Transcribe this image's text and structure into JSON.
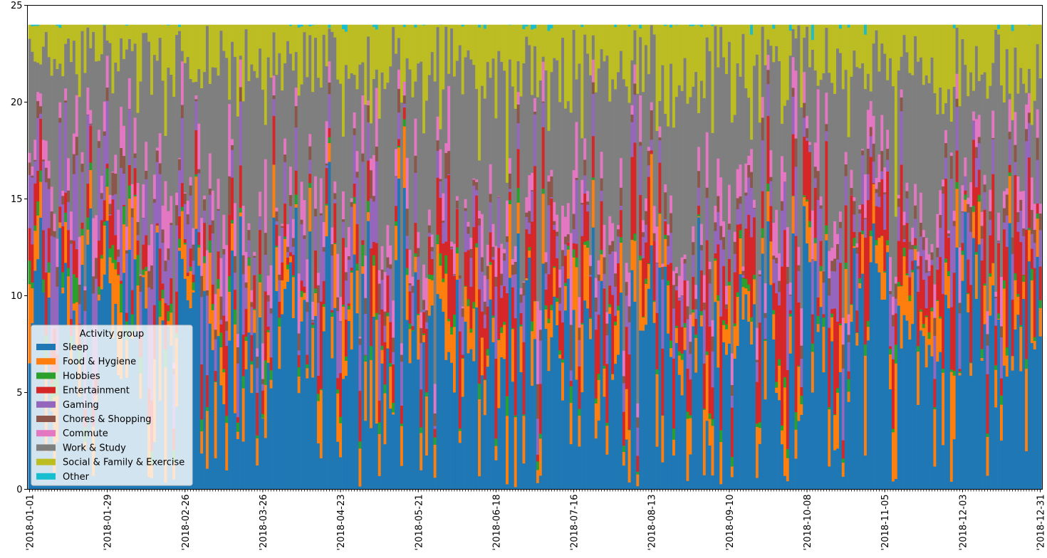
{
  "chart_data": {
    "type": "bar",
    "stacked": true,
    "title": "",
    "xlabel": "",
    "ylabel": "",
    "ylim": [
      0,
      25
    ],
    "yticks": [
      0,
      5,
      10,
      15,
      20,
      25
    ],
    "grid": false,
    "legend_position": "lower left",
    "legend_title": "Activity group",
    "x_start": "2018-01-01",
    "x_end": "2018-12-31",
    "num_days": 365,
    "xtick_labels": [
      "'2018-01-01",
      "'2018-01-29",
      "'2018-02-26",
      "'2018-03-26",
      "'2018-04-23",
      "'2018-05-21",
      "'2018-06-18",
      "'2018-07-16",
      "'2018-08-13",
      "'2018-09-10",
      "'2018-10-08",
      "'2018-11-05",
      "'2018-12-03",
      "'2018-12-31"
    ],
    "xtick_day_index": [
      0,
      28,
      56,
      84,
      112,
      140,
      168,
      196,
      224,
      252,
      280,
      308,
      336,
      364
    ],
    "resolution_note": "weekly averages (hours per day), week 1 starting 2018-01-01",
    "series": [
      {
        "name": "Sleep",
        "color": "#1f77b4",
        "values": [
          9.6,
          9.2,
          9.0,
          8.7,
          8.9,
          8.4,
          8.1,
          7.8,
          7.9,
          7.6,
          7.8,
          7.5,
          7.4,
          7.2,
          7.6,
          7.9,
          7.8,
          7.7,
          7.6,
          7.9,
          7.8,
          7.4,
          7.3,
          7.2,
          6.9,
          7.4,
          7.0,
          7.6,
          6.8,
          6.9,
          6.7,
          6.6,
          6.6,
          7.3,
          6.9,
          7.6,
          7.8,
          7.8,
          7.7,
          7.7,
          7.9,
          8.1,
          7.6,
          7.8,
          8.1,
          8.0,
          7.7,
          7.6,
          7.8,
          7.6,
          7.7,
          8.0,
          8.6
        ]
      },
      {
        "name": "Food & Hygiene",
        "color": "#ff7f0e",
        "values": [
          1.8,
          1.9,
          1.6,
          1.8,
          1.5,
          1.9,
          1.8,
          1.7,
          1.6,
          1.8,
          1.8,
          1.8,
          1.8,
          1.7,
          1.7,
          1.6,
          1.8,
          1.7,
          1.7,
          1.8,
          1.7,
          1.6,
          1.6,
          1.7,
          1.9,
          1.8,
          1.6,
          1.5,
          1.8,
          1.8,
          1.8,
          1.7,
          1.8,
          1.6,
          1.8,
          1.8,
          1.7,
          1.7,
          1.6,
          1.7,
          1.6,
          1.7,
          1.6,
          1.9,
          1.6,
          1.8,
          1.6,
          1.7,
          1.7,
          1.7,
          1.6,
          1.6,
          1.7
        ]
      },
      {
        "name": "Hobbies",
        "color": "#2ca02c",
        "values": [
          0.6,
          0.8,
          0.7,
          0.5,
          0.6,
          0.6,
          0.5,
          0.4,
          0.5,
          0.4,
          0.3,
          0.3,
          0.3,
          0.2,
          0.2,
          0.2,
          0.2,
          0.3,
          0.3,
          0.2,
          0.2,
          0.3,
          0.3,
          0.3,
          0.3,
          0.3,
          0.2,
          0.2,
          0.2,
          0.2,
          0.2,
          0.2,
          0.2,
          0.2,
          0.2,
          0.2,
          0.3,
          0.2,
          0.2,
          0.2,
          0.3,
          0.2,
          0.2,
          0.2,
          0.2,
          0.2,
          0.2,
          0.2,
          0.2,
          0.2,
          0.2,
          0.2,
          0.3
        ]
      },
      {
        "name": "Entertainment",
        "color": "#d62728",
        "values": [
          1.9,
          1.4,
          1.2,
          1.4,
          1.2,
          1.0,
          1.2,
          1.3,
          1.2,
          1.1,
          1.4,
          1.4,
          1.3,
          1.6,
          1.2,
          1.1,
          1.2,
          1.3,
          1.5,
          1.4,
          1.5,
          2.2,
          2.0,
          2.3,
          2.4,
          2.3,
          2.4,
          1.8,
          2.3,
          2.3,
          2.3,
          2.3,
          2.3,
          1.9,
          2.1,
          1.9,
          2.3,
          2.5,
          2.6,
          2.4,
          2.5,
          2.5,
          2.6,
          2.4,
          2.3,
          2.2,
          2.3,
          2.5,
          2.5,
          2.6,
          2.5,
          2.5,
          2.4
        ]
      },
      {
        "name": "Gaming",
        "color": "#9467bd",
        "values": [
          2.6,
          3.0,
          2.7,
          2.6,
          2.9,
          2.7,
          2.6,
          2.4,
          2.3,
          2.2,
          1.8,
          1.6,
          1.6,
          1.6,
          1.7,
          1.8,
          1.7,
          1.6,
          1.5,
          1.4,
          1.2,
          1.4,
          1.3,
          1.3,
          1.3,
          1.2,
          1.3,
          1.3,
          1.2,
          1.1,
          1.2,
          1.3,
          1.2,
          1.2,
          1.4,
          1.3,
          1.1,
          1.1,
          1.2,
          1.2,
          1.2,
          1.4,
          1.4,
          1.2,
          1.3,
          1.1,
          1.2,
          1.4,
          1.4,
          1.3,
          1.4,
          1.3,
          1.5
        ]
      },
      {
        "name": "Chores & Shopping",
        "color": "#8c564b",
        "values": [
          0.7,
          0.6,
          0.5,
          0.6,
          0.6,
          0.5,
          0.5,
          0.5,
          0.5,
          0.5,
          0.5,
          0.5,
          0.4,
          0.4,
          0.4,
          0.4,
          0.4,
          0.5,
          0.5,
          0.5,
          0.4,
          0.4,
          0.4,
          0.5,
          0.4,
          0.4,
          0.5,
          0.5,
          0.5,
          0.5,
          0.5,
          0.6,
          0.5,
          0.5,
          0.5,
          0.5,
          0.5,
          0.4,
          0.4,
          0.5,
          0.4,
          0.5,
          0.4,
          0.5,
          0.5,
          0.4,
          0.5,
          0.4,
          0.4,
          0.4,
          0.5,
          0.5,
          0.6
        ]
      },
      {
        "name": "Commute",
        "color": "#e377c2",
        "values": [
          0.8,
          0.9,
          1.2,
          1.1,
          1.3,
          1.3,
          1.3,
          1.4,
          1.3,
          1.3,
          1.4,
          1.5,
          1.4,
          1.3,
          1.3,
          1.3,
          1.2,
          1.2,
          1.3,
          1.2,
          1.2,
          1.1,
          1.1,
          1.1,
          1.1,
          1.1,
          1.1,
          1.0,
          1.0,
          1.0,
          1.1,
          1.0,
          1.1,
          1.0,
          1.1,
          1.0,
          1.0,
          1.0,
          1.0,
          1.0,
          1.0,
          1.1,
          1.0,
          1.1,
          1.0,
          1.0,
          1.0,
          1.0,
          1.0,
          1.0,
          1.0,
          1.0,
          0.8
        ]
      },
      {
        "name": "Work & Study",
        "color": "#7f7f7f",
        "values": [
          4.2,
          4.7,
          5.3,
          5.6,
          5.3,
          5.8,
          6.1,
          6.5,
          6.8,
          7.1,
          7.0,
          7.3,
          7.7,
          7.9,
          7.6,
          7.3,
          7.2,
          7.3,
          7.2,
          6.9,
          7.3,
          7.1,
          7.4,
          6.9,
          7.0,
          7.0,
          7.4,
          7.2,
          7.4,
          7.4,
          7.4,
          7.3,
          7.5,
          7.6,
          7.4,
          7.3,
          6.9,
          6.8,
          6.7,
          6.9,
          6.7,
          6.3,
          6.7,
          6.4,
          6.5,
          6.9,
          6.8,
          6.6,
          6.4,
          6.6,
          6.6,
          6.4,
          5.7
        ]
      },
      {
        "name": "Social & Family & Exercise",
        "color": "#bcbd22",
        "values": [
          1.7,
          1.4,
          1.7,
          1.6,
          1.6,
          1.7,
          1.8,
          1.9,
          1.8,
          1.9,
          1.9,
          2.1,
          2.0,
          2.0,
          2.2,
          2.3,
          2.3,
          2.3,
          2.3,
          2.6,
          2.6,
          2.4,
          2.5,
          2.5,
          2.4,
          2.4,
          2.4,
          2.8,
          2.5,
          2.6,
          2.5,
          2.5,
          2.6,
          2.6,
          2.5,
          2.4,
          2.4,
          2.3,
          2.4,
          2.2,
          2.1,
          1.9,
          2.1,
          2.2,
          2.1,
          2.1,
          2.2,
          2.3,
          2.3,
          2.2,
          2.2,
          2.3,
          2.4
        ]
      },
      {
        "name": "Other",
        "color": "#17becf",
        "values": [
          0.1,
          0.1,
          0.1,
          0.1,
          0.0,
          0.1,
          0.1,
          0.1,
          0.1,
          0.0,
          0.1,
          0.0,
          0.1,
          0.1,
          0.1,
          0.1,
          0.2,
          0.1,
          0.1,
          0.1,
          0.1,
          0.1,
          0.1,
          0.2,
          0.1,
          0.1,
          0.1,
          0.1,
          0.1,
          0.0,
          0.1,
          0.1,
          0.1,
          0.1,
          0.1,
          0.1,
          0.1,
          0.2,
          0.2,
          0.2,
          0.3,
          0.3,
          0.4,
          0.2,
          0.3,
          0.1,
          0.1,
          0.1,
          0.2,
          0.2,
          0.2,
          0.2,
          0.1
        ]
      }
    ]
  },
  "legend": {
    "title": "Activity group",
    "items": [
      "Sleep",
      "Food & Hygiene",
      "Hobbies",
      "Entertainment",
      "Gaming",
      "Chores & Shopping",
      "Commute",
      "Work & Study",
      "Social & Family & Exercise",
      "Other"
    ]
  },
  "axes": {
    "y_tick_labels": [
      "0",
      "5",
      "10",
      "15",
      "20",
      "25"
    ]
  }
}
